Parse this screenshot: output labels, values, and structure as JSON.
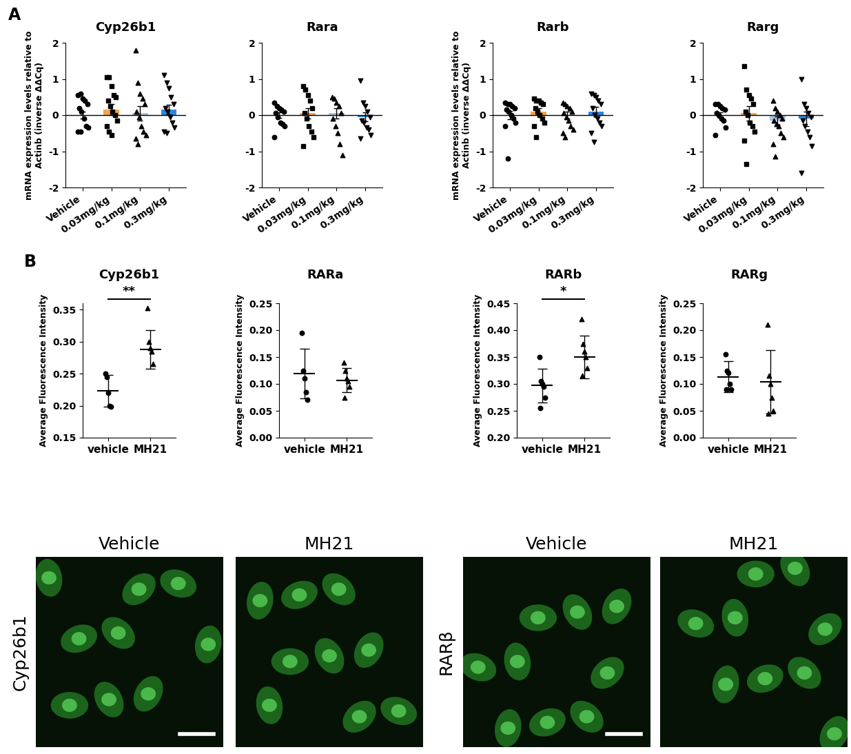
{
  "panel_labels": [
    "A",
    "B"
  ],
  "chart_data": [
    {
      "panel": "A",
      "type": "bar_scatter",
      "title": "Cyp26b1",
      "ylabel": "mRNA expression levels relative to\nActinb (inverse ΔΔCq)",
      "categories": [
        "Vehicle",
        "0.03mg/kg",
        "0.1mg/kg",
        "0.3mg/kg"
      ],
      "colors": [
        "#d9d9d9",
        "#f4a44f",
        "#a9bfe3",
        "#2e86de"
      ],
      "markers": [
        "circle",
        "square",
        "triangle_up",
        "triangle_down"
      ],
      "points": [
        [
          0.55,
          0.6,
          0.45,
          0.4,
          0.3,
          0.2,
          0.1,
          -0.1,
          -0.3,
          -0.35,
          -0.45,
          -0.45
        ],
        [
          1.05,
          1.05,
          0.8,
          0.55,
          0.5,
          0.4,
          0.25,
          0.1,
          0.0,
          -0.15,
          -0.3,
          -0.45,
          -0.55
        ],
        [
          1.8,
          0.9,
          0.6,
          0.45,
          0.3,
          0.1,
          -0.05,
          -0.3,
          -0.45,
          -0.55,
          -0.65,
          -0.8
        ],
        [
          1.1,
          0.9,
          0.75,
          0.5,
          0.3,
          0.2,
          0.1,
          -0.05,
          -0.2,
          -0.35,
          -0.45,
          -0.5
        ]
      ],
      "values": [
        0.0,
        0.15,
        0.05,
        0.15
      ],
      "errors": [
        0.1,
        0.15,
        0.2,
        0.13
      ],
      "ylim": [
        -2,
        2
      ],
      "yticks": [
        -2,
        -1,
        0,
        1,
        2
      ]
    },
    {
      "panel": "A",
      "type": "bar_scatter",
      "title": "Rara",
      "categories": [
        "Vehicle",
        "0.03mg/kg",
        "0.1mg/kg",
        "0.3mg/kg"
      ],
      "colors": [
        "#d9d9d9",
        "#f4a44f",
        "#a9bfe3",
        "#2e86de"
      ],
      "markers": [
        "circle",
        "square",
        "triangle_up",
        "triangle_down"
      ],
      "points": [
        [
          0.35,
          0.25,
          0.2,
          0.15,
          0.1,
          0.05,
          -0.05,
          -0.2,
          -0.25,
          -0.3,
          -0.6
        ],
        [
          0.8,
          0.7,
          0.55,
          0.4,
          0.2,
          0.05,
          -0.1,
          -0.3,
          -0.45,
          -0.6,
          -0.85
        ],
        [
          0.5,
          0.45,
          0.35,
          0.25,
          0.05,
          -0.1,
          -0.3,
          -0.5,
          -0.8,
          -1.1
        ],
        [
          0.95,
          0.35,
          0.25,
          0.1,
          -0.05,
          -0.15,
          -0.2,
          -0.35,
          -0.4,
          -0.55,
          -0.65
        ]
      ],
      "values": [
        0.0,
        0.05,
        0.05,
        -0.05
      ],
      "errors": [
        0.08,
        0.15,
        0.15,
        0.12
      ],
      "ylim": [
        -2,
        2
      ],
      "yticks": [
        -2,
        -1,
        0,
        1,
        2
      ]
    },
    {
      "panel": "A",
      "type": "bar_scatter",
      "title": "Rarb",
      "ylabel": "mRNA expression levels relative to\nActinb (inverse ΔΔCq)",
      "categories": [
        "Vehicle",
        "0.03mg/kg",
        "0.1mg/kg",
        "0.3mg/kg"
      ],
      "colors": [
        "#d9d9d9",
        "#f4a44f",
        "#a9bfe3",
        "#2e86de"
      ],
      "markers": [
        "circle",
        "square",
        "triangle_up",
        "triangle_down"
      ],
      "points": [
        [
          0.35,
          0.3,
          0.3,
          0.25,
          0.2,
          0.15,
          0.1,
          0.0,
          -0.1,
          -0.2,
          -0.3,
          -1.2
        ],
        [
          0.45,
          0.4,
          0.4,
          0.35,
          0.3,
          0.2,
          0.1,
          0.0,
          -0.1,
          -0.2,
          -0.3,
          -0.6
        ],
        [
          0.35,
          0.3,
          0.25,
          0.2,
          0.1,
          0.05,
          -0.05,
          -0.15,
          -0.3,
          -0.4,
          -0.5,
          -0.6
        ],
        [
          0.6,
          0.55,
          0.5,
          0.4,
          0.3,
          0.2,
          0.0,
          -0.1,
          -0.2,
          -0.3,
          -0.5,
          -0.75
        ]
      ],
      "values": [
        0.0,
        0.1,
        0.0,
        0.1
      ],
      "errors": [
        0.12,
        0.09,
        0.1,
        0.13
      ],
      "ylim": [
        -2,
        2
      ],
      "yticks": [
        -2,
        -1,
        0,
        1,
        2
      ]
    },
    {
      "panel": "A",
      "type": "bar_scatter",
      "title": "Rarg",
      "categories": [
        "Vehicle",
        "0.03mg/kg",
        "0.1mg/kg",
        "0.3mg/kg"
      ],
      "colors": [
        "#d9d9d9",
        "#f4a44f",
        "#a9bfe3",
        "#2e86de"
      ],
      "markers": [
        "circle",
        "square",
        "triangle_up",
        "triangle_down"
      ],
      "points": [
        [
          0.3,
          0.3,
          0.25,
          0.2,
          0.15,
          0.05,
          0.0,
          -0.1,
          -0.15,
          -0.35,
          -0.55
        ],
        [
          1.35,
          0.7,
          0.55,
          0.45,
          0.3,
          0.1,
          0.0,
          -0.2,
          -0.3,
          -0.45,
          -0.7,
          -1.35
        ],
        [
          0.4,
          0.2,
          0.1,
          0.0,
          -0.1,
          -0.15,
          -0.25,
          -0.3,
          -0.5,
          -0.6,
          -0.8,
          -1.15
        ],
        [
          1.0,
          0.3,
          0.2,
          0.05,
          -0.05,
          -0.15,
          -0.3,
          -0.45,
          -0.6,
          -0.85,
          -1.6
        ]
      ],
      "values": [
        0.0,
        0.05,
        -0.15,
        -0.1
      ],
      "errors": [
        0.08,
        0.2,
        0.12,
        0.2
      ],
      "ylim": [
        -2,
        2
      ],
      "yticks": [
        -2,
        -1,
        0,
        1,
        2
      ]
    },
    {
      "panel": "B",
      "type": "scatter",
      "title": "Cyp26b1",
      "ylabel": "Average Fluorescence Intensity",
      "categories": [
        "vehicle",
        "MH21"
      ],
      "markers": [
        "circle",
        "triangle_up"
      ],
      "points": [
        [
          0.25,
          0.245,
          0.22,
          0.2,
          0.198
        ],
        [
          0.352,
          0.3,
          0.29,
          0.285,
          0.265
        ]
      ],
      "values": [
        0.223,
        0.288
      ],
      "errors": [
        0.025,
        0.03
      ],
      "significance": "**",
      "ylim": [
        0.15,
        0.36
      ],
      "yticks": [
        0.15,
        {
          "value": 0.2,
          "label": "0.20"
        },
        0.25,
        {
          "value": 0.3,
          "label": "0.30"
        },
        0.35
      ]
    },
    {
      "panel": "B",
      "type": "scatter",
      "title": "RARa",
      "ylabel": "Average Fluorescence Intensity",
      "categories": [
        "vehicle",
        "MH21"
      ],
      "markers": [
        "circle",
        "triangle_up"
      ],
      "points": [
        [
          0.195,
          0.125,
          0.11,
          0.085,
          0.07
        ],
        [
          0.14,
          0.125,
          0.11,
          0.105,
          0.095,
          0.075
        ]
      ],
      "values": [
        0.119,
        0.107
      ],
      "errors": [
        0.046,
        0.023
      ],
      "ylim": [
        0,
        0.25
      ],
      "yticks": [
        {
          "value": 0,
          "label": "0.00"
        },
        0.05,
        {
          "value": 0.1,
          "label": "0.10"
        },
        0.15,
        {
          "value": 0.2,
          "label": "0.20"
        },
        0.25
      ]
    },
    {
      "panel": "B",
      "type": "scatter",
      "title": "RARb",
      "ylabel": "Average Fluorescence Intensity",
      "categories": [
        "vehicle",
        "MH21"
      ],
      "markers": [
        "circle",
        "triangle_up"
      ],
      "points": [
        [
          0.35,
          0.305,
          0.3,
          0.295,
          0.275,
          0.255
        ],
        [
          0.42,
          0.375,
          0.36,
          0.35,
          0.33,
          0.315
        ]
      ],
      "values": [
        0.297,
        0.35
      ],
      "errors": [
        0.031,
        0.04
      ],
      "significance": "*",
      "ylim": [
        0.2,
        0.45
      ],
      "yticks": [
        {
          "value": 0.2,
          "label": "0.20"
        },
        0.25,
        {
          "value": 0.3,
          "label": "0.30"
        },
        0.35,
        {
          "value": 0.4,
          "label": "0.40"
        },
        0.45
      ]
    },
    {
      "panel": "B",
      "type": "scatter",
      "title": "RARg",
      "ylabel": "Average Fluorescence Intensity",
      "categories": [
        "vehicle",
        "MH21"
      ],
      "markers": [
        "circle",
        "triangle_up"
      ],
      "points": [
        [
          0.155,
          0.125,
          0.12,
          0.1,
          0.09,
          0.09
        ],
        [
          0.21,
          0.115,
          0.1,
          0.075,
          0.05,
          0.045
        ]
      ],
      "values": [
        0.113,
        0.104
      ],
      "errors": [
        0.029,
        0.059
      ],
      "ylim": [
        0,
        0.25
      ],
      "yticks": [
        {
          "value": 0,
          "label": "0.00"
        },
        0.05,
        {
          "value": 0.1,
          "label": "0.10"
        },
        0.15,
        {
          "value": 0.2,
          "label": "0.20"
        },
        0.25
      ]
    }
  ],
  "micrographs": {
    "column_titles": [
      "Vehicle",
      "MH21",
      "Vehicle",
      "MH21"
    ],
    "row_labels": [
      "Cyp26b1",
      "RARβ"
    ]
  }
}
